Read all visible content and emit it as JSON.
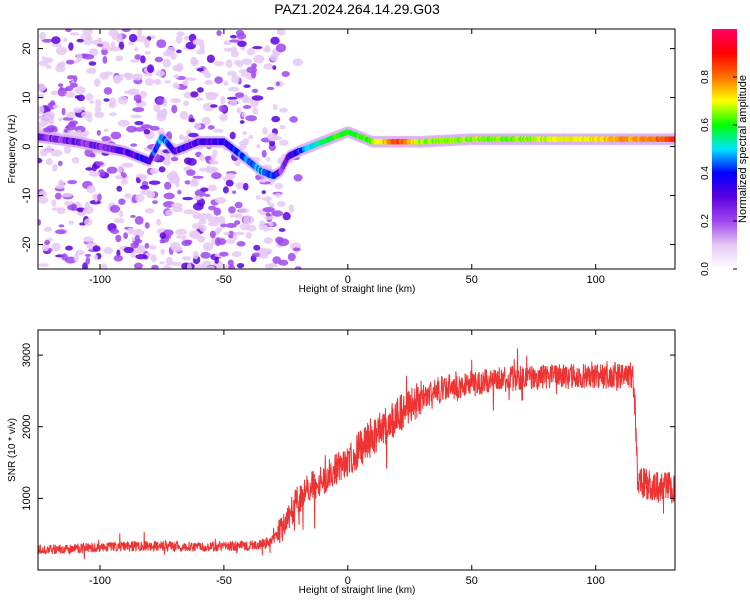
{
  "title": "PAZ1.2024.264.14.29.G03",
  "chart_data": [
    {
      "type": "heatmap",
      "xlabel": "Height of straight line (km)",
      "ylabel": "Frequency (Hz)",
      "xlim": [
        -125,
        132
      ],
      "ylim": [
        -25,
        24
      ],
      "xticks": [
        -100,
        -50,
        0,
        50,
        100
      ],
      "yticks": [
        -20,
        -10,
        0,
        10,
        20
      ],
      "colorbar": {
        "label": "Normalized spectral amplitude",
        "range": [
          0,
          1
        ],
        "ticks": [
          0,
          0.2,
          0.4,
          0.6,
          0.8
        ],
        "colors": [
          "#ffffff",
          "#e6c8f5",
          "#9f46ee",
          "#5b00e0",
          "#0000ff",
          "#00e5ff",
          "#00ff00",
          "#ffff00",
          "#ff7000",
          "#ff0000",
          "#ff0066"
        ]
      },
      "ridge": {
        "x": [
          -125,
          -110,
          -100,
          -90,
          -80,
          -75,
          -70,
          -60,
          -50,
          -45,
          -40,
          -35,
          -30,
          -27,
          -24,
          -20,
          -15,
          -10,
          -5,
          0,
          5,
          10,
          15,
          20,
          30,
          50,
          70,
          90,
          110,
          132
        ],
        "y": [
          2,
          1,
          0,
          -1,
          -3,
          2,
          -1,
          1,
          1,
          -1,
          -3,
          -5,
          -6,
          -5,
          -2,
          -1,
          0,
          1,
          2,
          3,
          2,
          1,
          1,
          1,
          1,
          1.5,
          1.5,
          1.5,
          1.5,
          1.5
        ],
        "amplitude": [
          0.25,
          0.25,
          0.25,
          0.3,
          0.35,
          0.45,
          0.3,
          0.3,
          0.35,
          0.4,
          0.45,
          0.45,
          0.4,
          0.25,
          0.3,
          0.4,
          0.5,
          0.55,
          0.6,
          0.6,
          0.6,
          0.65,
          0.75,
          0.85,
          0.65,
          0.65,
          0.65,
          0.7,
          0.75,
          0.85
        ]
      },
      "noise_region_x": [
        -125,
        -20
      ]
    },
    {
      "type": "line",
      "xlabel": "Height of straight line (km)",
      "ylabel": "SNR (10 * v/v)",
      "xlim": [
        -125,
        132
      ],
      "ylim": [
        0,
        3350
      ],
      "xticks": [
        -100,
        -50,
        0,
        50,
        100
      ],
      "yticks": [
        1000,
        2000,
        3000
      ],
      "color": "#ee3333",
      "series": [
        {
          "x": [
            -125,
            -110,
            -100,
            -90,
            -80,
            -70,
            -60,
            -50,
            -40,
            -35,
            -30,
            -27,
            -25,
            -22,
            -20,
            -15,
            -10,
            -5,
            0,
            5,
            10,
            15,
            20,
            25,
            30,
            35,
            40,
            50,
            60,
            70,
            80,
            90,
            100,
            110,
            115,
            116,
            117,
            120,
            125,
            132
          ],
          "values": [
            280,
            300,
            320,
            330,
            340,
            330,
            320,
            330,
            340,
            360,
            420,
            560,
            700,
            860,
            1000,
            1150,
            1250,
            1400,
            1550,
            1700,
            1850,
            2000,
            2150,
            2300,
            2400,
            2500,
            2550,
            2600,
            2650,
            2680,
            2700,
            2700,
            2700,
            2700,
            2700,
            2100,
            1250,
            1200,
            1150,
            1150
          ]
        }
      ]
    }
  ]
}
